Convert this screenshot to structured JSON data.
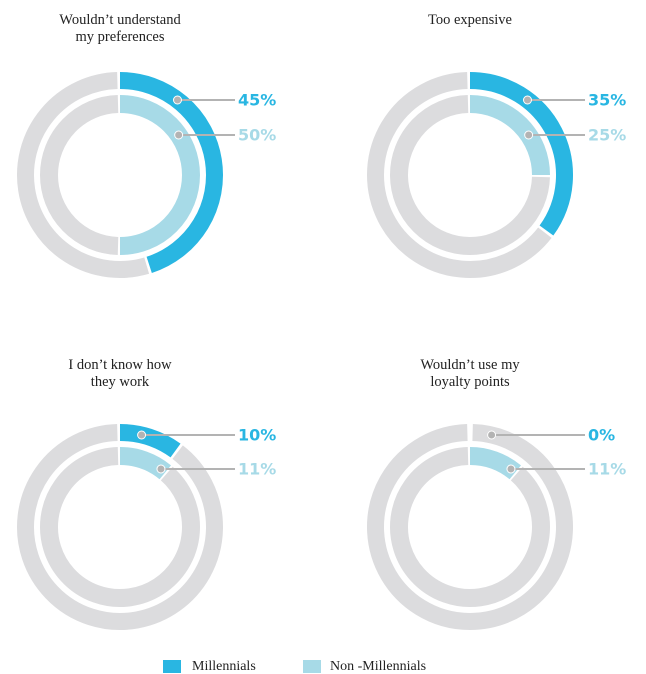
{
  "chart_data": {
    "type": "nested-donut",
    "categories": [
      "Wouldn’t understand\nmy preferences",
      "Too expensive",
      "I don’t know how\nthey work",
      "Wouldn’t use my\nloyalty points"
    ],
    "series": [
      {
        "name": "Millennials",
        "color": "#29b6e2",
        "values": [
          45,
          35,
          10,
          0
        ],
        "value_labels": [
          "45%",
          "35%",
          "10%",
          "0%"
        ]
      },
      {
        "name": "Non -Millennials",
        "color": "#a7dae7",
        "values": [
          50,
          25,
          11,
          11
        ],
        "value_labels": [
          "50%",
          "25%",
          "11%",
          "11%"
        ]
      }
    ],
    "track_color": "#dcdcde"
  }
}
